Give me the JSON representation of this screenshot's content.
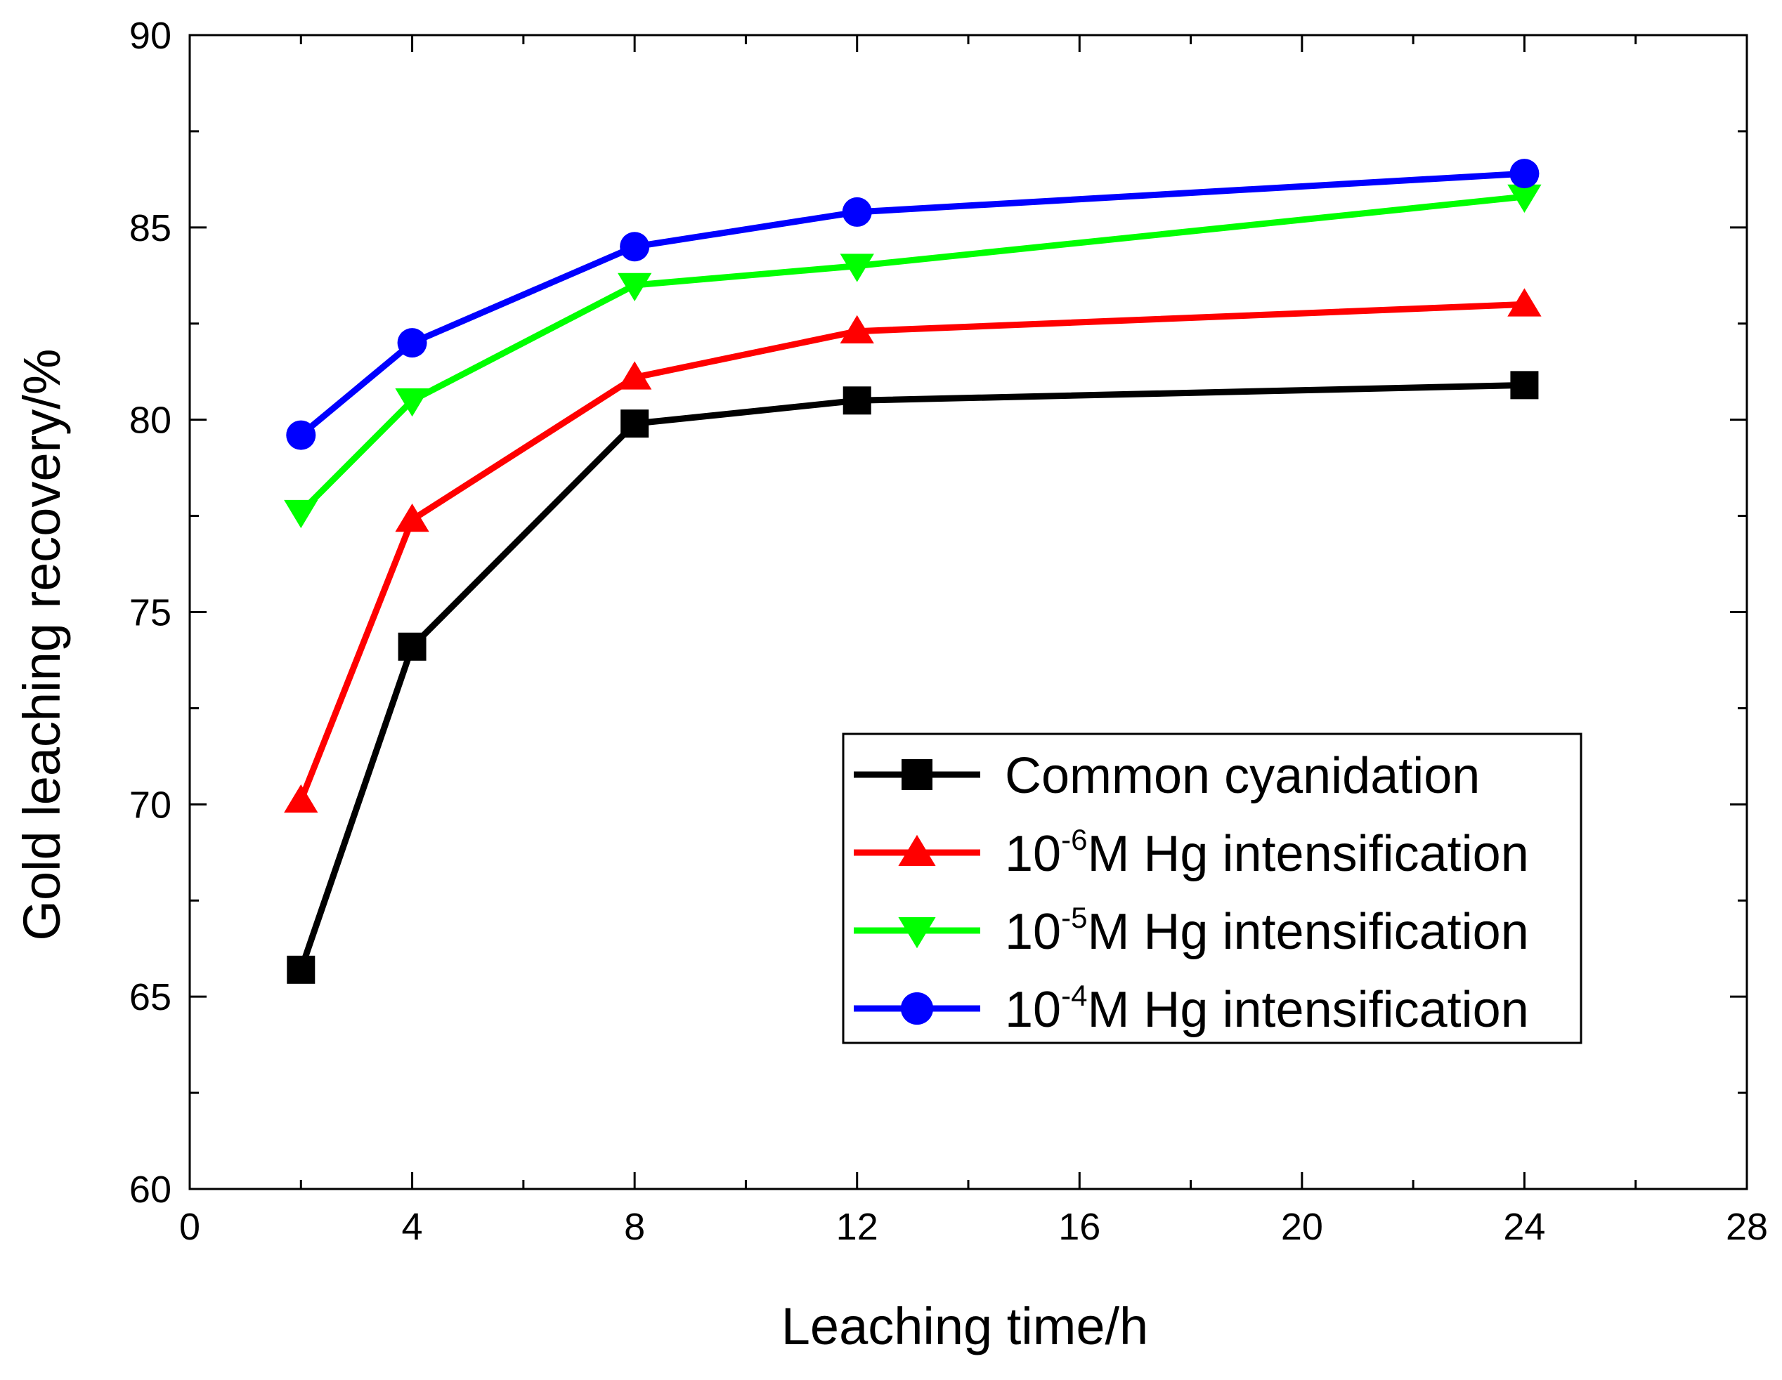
{
  "chart_data": {
    "type": "line",
    "title": "",
    "xlabel": "Leaching time/h",
    "ylabel": "Gold leaching recovery/%",
    "xlim": [
      0,
      28
    ],
    "ylim": [
      60,
      90
    ],
    "x_ticks": [
      0,
      4,
      8,
      12,
      16,
      20,
      24,
      28
    ],
    "x_tick_labels": [
      "0",
      "4",
      "8",
      "12",
      "16",
      "20",
      "24",
      "28"
    ],
    "y_ticks": [
      60,
      65,
      70,
      75,
      80,
      85,
      90
    ],
    "y_tick_labels": [
      "60",
      "65",
      "70",
      "75",
      "80",
      "85",
      "90"
    ],
    "grid": false,
    "legend_position": "bottom-right",
    "x": [
      2,
      4,
      8,
      12,
      24
    ],
    "series": [
      {
        "name": "Common cyanidation",
        "legend_prefix": "Common cyanidation",
        "legend_sup": "",
        "legend_suffix": "",
        "marker": "square",
        "color": "#000000",
        "values": [
          65.7,
          74.1,
          79.9,
          80.5,
          80.9
        ]
      },
      {
        "name": "10-6M Hg intensification",
        "legend_prefix": "10",
        "legend_sup": "-6",
        "legend_suffix": "M Hg intensification",
        "marker": "triangle-up",
        "color": "#ff0000",
        "values": [
          70.1,
          77.4,
          81.1,
          82.3,
          83.0
        ]
      },
      {
        "name": "10-5M Hg intensification",
        "legend_prefix": "10",
        "legend_sup": "-5",
        "legend_suffix": "M Hg intensification",
        "marker": "triangle-down",
        "color": "#00ff00",
        "values": [
          77.6,
          80.5,
          83.5,
          84.0,
          85.8
        ]
      },
      {
        "name": "10-4M Hg intensification",
        "legend_prefix": "10",
        "legend_sup": "-4",
        "legend_suffix": "M Hg intensification",
        "marker": "circle",
        "color": "#0000ff",
        "values": [
          79.6,
          82.0,
          84.5,
          85.4,
          86.4
        ]
      }
    ]
  }
}
